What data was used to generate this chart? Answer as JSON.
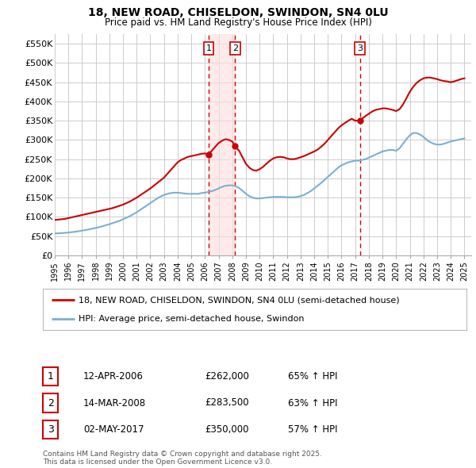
{
  "title_line1": "18, NEW ROAD, CHISELDON, SWINDON, SN4 0LU",
  "title_line2": "Price paid vs. HM Land Registry's House Price Index (HPI)",
  "ylim": [
    0,
    575000
  ],
  "yticks": [
    0,
    50000,
    100000,
    150000,
    200000,
    250000,
    300000,
    350000,
    400000,
    450000,
    500000,
    550000
  ],
  "ytick_labels": [
    "£0",
    "£50K",
    "£100K",
    "£150K",
    "£200K",
    "£250K",
    "£300K",
    "£350K",
    "£400K",
    "£450K",
    "£500K",
    "£550K"
  ],
  "xlim_start": 1995.0,
  "xlim_end": 2025.5,
  "grid_color": "#cccccc",
  "bg_color": "#ffffff",
  "red_color": "#cc0000",
  "blue_color": "#7bafd4",
  "sale_dates": [
    2006.28,
    2008.2,
    2017.34
  ],
  "sale_prices": [
    262000,
    283500,
    350000
  ],
  "sale_labels": [
    "1",
    "2",
    "3"
  ],
  "vline_color": "#cc0000",
  "shade_color": "#ffdddd",
  "legend_label_red": "18, NEW ROAD, CHISELDON, SWINDON, SN4 0LU (semi-detached house)",
  "legend_label_blue": "HPI: Average price, semi-detached house, Swindon",
  "table_rows": [
    [
      "1",
      "12-APR-2006",
      "£262,000",
      "65% ↑ HPI"
    ],
    [
      "2",
      "14-MAR-2008",
      "£283,500",
      "63% ↑ HPI"
    ],
    [
      "3",
      "02-MAY-2017",
      "£350,000",
      "57% ↑ HPI"
    ]
  ],
  "footnote": "Contains HM Land Registry data © Crown copyright and database right 2025.\nThis data is licensed under the Open Government Licence v3.0.",
  "red_x": [
    1995.0,
    1995.25,
    1995.5,
    1995.75,
    1996.0,
    1996.25,
    1996.5,
    1996.75,
    1997.0,
    1997.25,
    1997.5,
    1997.75,
    1998.0,
    1998.25,
    1998.5,
    1998.75,
    1999.0,
    1999.25,
    1999.5,
    1999.75,
    2000.0,
    2000.25,
    2000.5,
    2000.75,
    2001.0,
    2001.25,
    2001.5,
    2001.75,
    2002.0,
    2002.25,
    2002.5,
    2002.75,
    2003.0,
    2003.25,
    2003.5,
    2003.75,
    2004.0,
    2004.25,
    2004.5,
    2004.75,
    2005.0,
    2005.25,
    2005.5,
    2005.75,
    2006.0,
    2006.28,
    2006.5,
    2006.75,
    2007.0,
    2007.25,
    2007.5,
    2007.75,
    2008.0,
    2008.2,
    2008.5,
    2008.75,
    2009.0,
    2009.25,
    2009.5,
    2009.75,
    2010.0,
    2010.25,
    2010.5,
    2010.75,
    2011.0,
    2011.25,
    2011.5,
    2011.75,
    2012.0,
    2012.25,
    2012.5,
    2012.75,
    2013.0,
    2013.25,
    2013.5,
    2013.75,
    2014.0,
    2014.25,
    2014.5,
    2014.75,
    2015.0,
    2015.25,
    2015.5,
    2015.75,
    2016.0,
    2016.25,
    2016.5,
    2016.75,
    2017.0,
    2017.34,
    2017.5,
    2017.75,
    2018.0,
    2018.25,
    2018.5,
    2018.75,
    2019.0,
    2019.25,
    2019.5,
    2019.75,
    2020.0,
    2020.25,
    2020.5,
    2020.75,
    2021.0,
    2021.25,
    2021.5,
    2021.75,
    2022.0,
    2022.25,
    2022.5,
    2022.75,
    2023.0,
    2023.25,
    2023.5,
    2023.75,
    2024.0,
    2024.25,
    2024.5,
    2024.75,
    2025.0
  ],
  "red_y": [
    92000,
    93000,
    94000,
    95000,
    97000,
    99000,
    101000,
    103000,
    105000,
    107000,
    109000,
    111000,
    113000,
    115000,
    117000,
    119000,
    121000,
    123000,
    126000,
    129000,
    132000,
    136000,
    140000,
    145000,
    150000,
    156000,
    162000,
    168000,
    174000,
    181000,
    188000,
    195000,
    202000,
    212000,
    222000,
    232000,
    242000,
    248000,
    252000,
    256000,
    258000,
    260000,
    262000,
    264000,
    265000,
    262000,
    272000,
    282000,
    292000,
    298000,
    302000,
    300000,
    296000,
    283500,
    272000,
    255000,
    238000,
    228000,
    222000,
    220000,
    224000,
    230000,
    238000,
    246000,
    252000,
    255000,
    256000,
    255000,
    252000,
    250000,
    250000,
    252000,
    255000,
    258000,
    262000,
    266000,
    270000,
    275000,
    282000,
    290000,
    300000,
    310000,
    320000,
    330000,
    338000,
    344000,
    350000,
    355000,
    350000,
    350000,
    355000,
    362000,
    368000,
    374000,
    378000,
    380000,
    382000,
    382000,
    380000,
    378000,
    375000,
    380000,
    392000,
    408000,
    425000,
    438000,
    448000,
    455000,
    460000,
    462000,
    462000,
    460000,
    458000,
    455000,
    453000,
    452000,
    450000,
    452000,
    455000,
    458000,
    460000
  ],
  "blue_x": [
    1995.0,
    1995.25,
    1995.5,
    1995.75,
    1996.0,
    1996.25,
    1996.5,
    1996.75,
    1997.0,
    1997.25,
    1997.5,
    1997.75,
    1998.0,
    1998.25,
    1998.5,
    1998.75,
    1999.0,
    1999.25,
    1999.5,
    1999.75,
    2000.0,
    2000.25,
    2000.5,
    2000.75,
    2001.0,
    2001.25,
    2001.5,
    2001.75,
    2002.0,
    2002.25,
    2002.5,
    2002.75,
    2003.0,
    2003.25,
    2003.5,
    2003.75,
    2004.0,
    2004.25,
    2004.5,
    2004.75,
    2005.0,
    2005.25,
    2005.5,
    2005.75,
    2006.0,
    2006.25,
    2006.5,
    2006.75,
    2007.0,
    2007.25,
    2007.5,
    2007.75,
    2008.0,
    2008.25,
    2008.5,
    2008.75,
    2009.0,
    2009.25,
    2009.5,
    2009.75,
    2010.0,
    2010.25,
    2010.5,
    2010.75,
    2011.0,
    2011.25,
    2011.5,
    2011.75,
    2012.0,
    2012.25,
    2012.5,
    2012.75,
    2013.0,
    2013.25,
    2013.5,
    2013.75,
    2014.0,
    2014.25,
    2014.5,
    2014.75,
    2015.0,
    2015.25,
    2015.5,
    2015.75,
    2016.0,
    2016.25,
    2016.5,
    2016.75,
    2017.0,
    2017.25,
    2017.5,
    2017.75,
    2018.0,
    2018.25,
    2018.5,
    2018.75,
    2019.0,
    2019.25,
    2019.5,
    2019.75,
    2020.0,
    2020.25,
    2020.5,
    2020.75,
    2021.0,
    2021.25,
    2021.5,
    2021.75,
    2022.0,
    2022.25,
    2022.5,
    2022.75,
    2023.0,
    2023.25,
    2023.5,
    2023.75,
    2024.0,
    2024.25,
    2024.5,
    2024.75,
    2025.0
  ],
  "blue_y": [
    57000,
    57500,
    58000,
    58500,
    59500,
    60500,
    61500,
    63000,
    64500,
    66000,
    67500,
    69500,
    71500,
    73500,
    76000,
    78500,
    81000,
    84000,
    87000,
    90000,
    94000,
    98000,
    102000,
    107000,
    112000,
    118000,
    124000,
    130000,
    136000,
    142000,
    148000,
    153000,
    157000,
    160000,
    162000,
    163000,
    163000,
    162000,
    161000,
    160000,
    160000,
    160000,
    160000,
    162000,
    163000,
    165000,
    167000,
    170000,
    174000,
    178000,
    181000,
    182000,
    182000,
    180000,
    175000,
    168000,
    160000,
    154000,
    150000,
    148000,
    148000,
    149000,
    150000,
    151000,
    152000,
    152000,
    152000,
    152000,
    151000,
    151000,
    151000,
    152000,
    154000,
    157000,
    162000,
    167000,
    174000,
    181000,
    188000,
    196000,
    204000,
    212000,
    220000,
    228000,
    234000,
    238000,
    242000,
    244000,
    246000,
    246000,
    248000,
    250000,
    254000,
    258000,
    262000,
    266000,
    270000,
    272000,
    274000,
    274000,
    272000,
    278000,
    290000,
    302000,
    312000,
    318000,
    318000,
    314000,
    308000,
    300000,
    294000,
    290000,
    288000,
    288000,
    290000,
    293000,
    296000,
    298000,
    300000,
    302000,
    304000
  ]
}
